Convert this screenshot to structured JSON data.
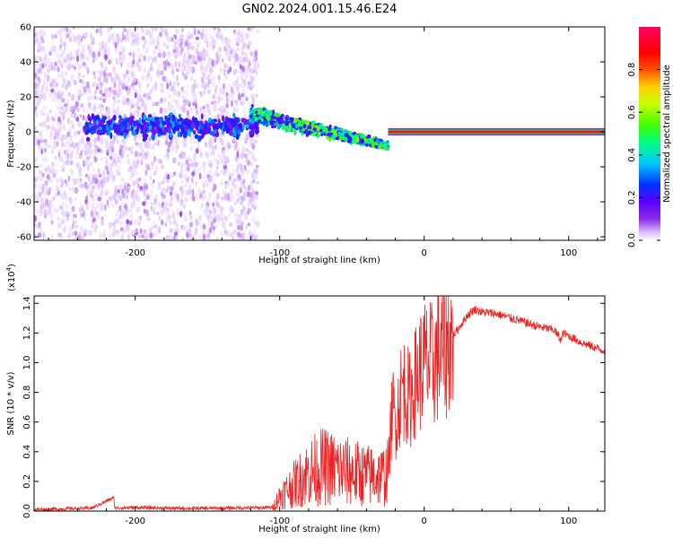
{
  "figure_title": "GN02.2024.001.15.46.E24",
  "chart_data": [
    {
      "type": "heatmap",
      "title": "",
      "xlabel": "Height of straight line (km)",
      "ylabel": "Frequency (Hz)",
      "xlim": [
        -270,
        125
      ],
      "ylim": [
        -62,
        60
      ],
      "xticks": [
        -200,
        -100,
        0,
        100
      ],
      "xticklabels": [
        "-200",
        "-100",
        "0",
        "100"
      ],
      "yticks": [
        60,
        40,
        20,
        0,
        -20,
        -40,
        -60
      ],
      "yticklabels": [
        "60",
        "40",
        "20",
        "0",
        "-20",
        "-40",
        "-60"
      ],
      "colorbar": {
        "label": "Normalized spectral amplitude",
        "range": [
          0,
          1
        ],
        "ticks": [
          0.0,
          0.2,
          0.4,
          0.6,
          0.8
        ],
        "ticklabels": [
          "0.0",
          "0.2",
          "0.4",
          "0.6",
          "0.8"
        ],
        "colormap": [
          "#ffffff",
          "#d8b8ff",
          "#8a2be2",
          "#5a00ff",
          "#0030ff",
          "#00c8ff",
          "#00ff80",
          "#40ff00",
          "#c8ff00",
          "#ffd000",
          "#ff5000",
          "#ff0000",
          "#ff0060"
        ]
      },
      "regions": [
        {
          "name": "noise",
          "x_range": [
            -270,
            -115
          ],
          "freq_range": [
            -62,
            60
          ],
          "amplitude": 0.12
        },
        {
          "name": "emerging-signal",
          "x_range": [
            -235,
            -115
          ],
          "freq_center": 3,
          "freq_spread": 8,
          "amplitude": 0.3
        },
        {
          "name": "drifting-signal",
          "x_range": [
            -120,
            -25
          ],
          "freq_start": 10,
          "freq_end": -8,
          "amplitude": 0.45
        },
        {
          "name": "steady-carrier",
          "x_range": [
            -25,
            125
          ],
          "freq_center": 0,
          "amplitude": 0.9
        }
      ]
    },
    {
      "type": "line",
      "title": "",
      "xlabel": "Height of straight line (km)",
      "ylabel": "SNR (10 * v/v)",
      "y_scale_label": "(x10",
      "y_scale_exponent": "4",
      "xlim": [
        -270,
        125
      ],
      "ylim": [
        0,
        14500
      ],
      "xticks": [
        -200,
        -100,
        0,
        100
      ],
      "xticklabels": [
        "-200",
        "-100",
        "0",
        "100"
      ],
      "yticks": [
        0,
        2000,
        4000,
        6000,
        8000,
        10000,
        12000,
        14000
      ],
      "yticklabels": [
        "0.0",
        "0.2",
        "0.4",
        "0.6",
        "0.8",
        "1.0",
        "1.2",
        "1.4"
      ],
      "color": "#ee2222",
      "series": [
        {
          "x": [
            -270,
            -250,
            -230,
            -215,
            -214,
            -200,
            -180,
            -160,
            -140,
            -120,
            -105,
            -100,
            -90,
            -80,
            -70,
            -60,
            -50,
            -40,
            -30,
            -25,
            -22,
            -20,
            -15,
            -10,
            -5,
            0,
            5,
            10,
            15,
            20,
            25,
            30,
            35,
            40,
            50,
            60,
            70,
            80,
            90,
            95,
            96,
            100,
            110,
            125
          ],
          "y": [
            100,
            150,
            200,
            900,
            200,
            250,
            200,
            180,
            200,
            220,
            250,
            1000,
            1800,
            2600,
            3000,
            2800,
            2600,
            2400,
            2300,
            2600,
            7000,
            6000,
            8500,
            7500,
            9000,
            10000,
            9800,
            10500,
            11000,
            11800,
            12500,
            13200,
            13600,
            13400,
            13300,
            13000,
            12700,
            12400,
            12200,
            11500,
            12000,
            11800,
            11300,
            10800
          ]
        }
      ]
    }
  ]
}
